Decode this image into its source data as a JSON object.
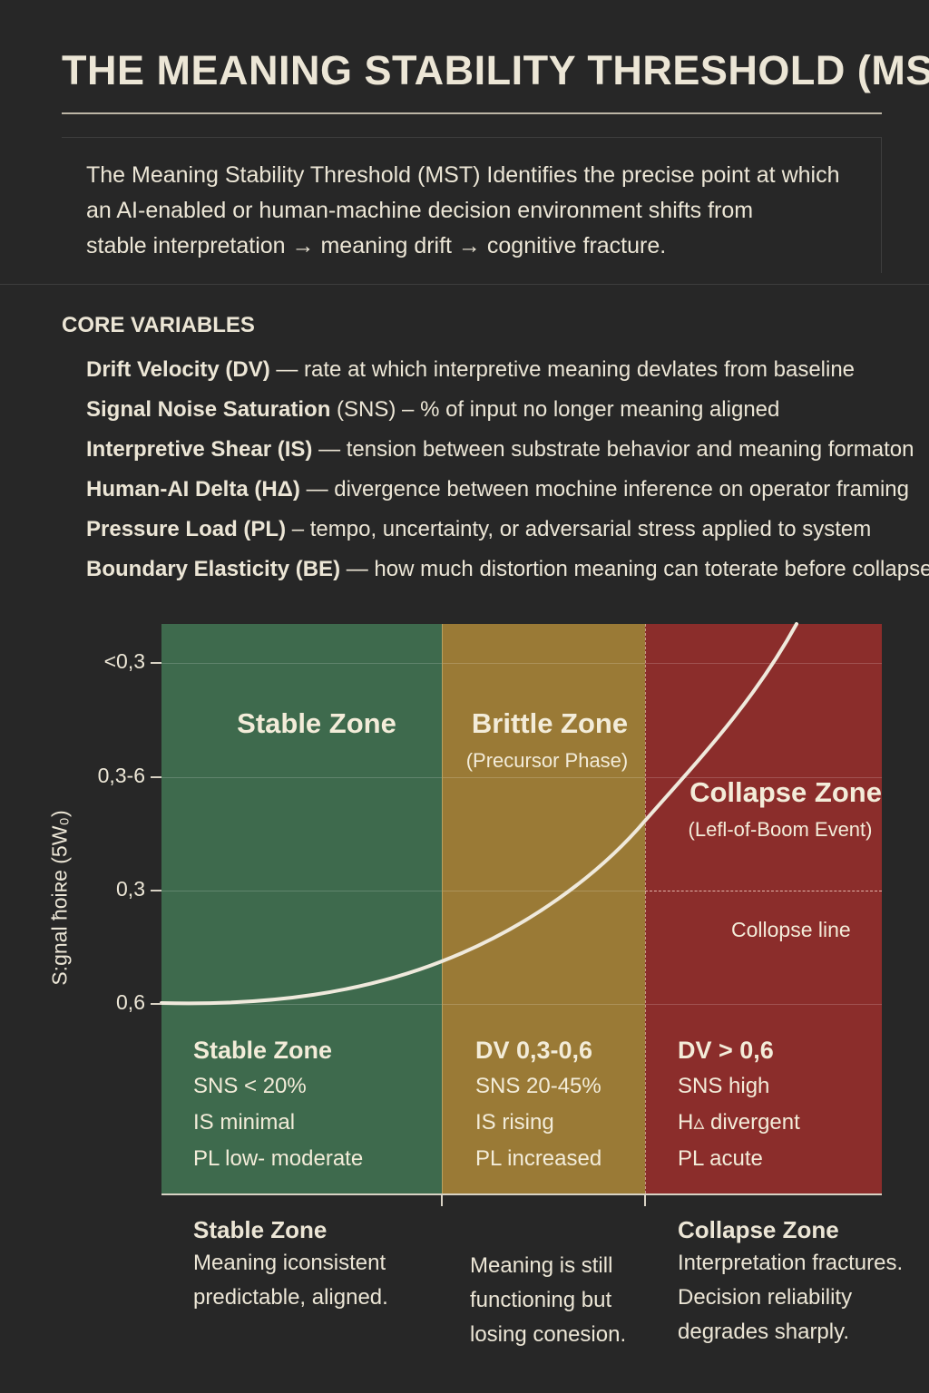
{
  "title": "THE MEANING STABILITY THRESHOLD (MST)",
  "intro": {
    "lines": [
      "The Meaning Stability Threshold (MST) Identifies the precise point at which",
      "an AI-enabled or human-machine decision environment shifts from",
      "stable interpretation → meaning drift → cognitive fracture."
    ]
  },
  "core_variables": {
    "heading": "CORE VARIABLES",
    "items": [
      {
        "term": "Drift Velocity (DV)",
        "desc": " — rate at which interpretive meaning devlates from baseline"
      },
      {
        "term": "Signal Noise Saturation",
        "desc": " (SNS) – % of input no longer meaning aligned"
      },
      {
        "term": "Interpretive Shear (IS)",
        "desc": " — tension between substrate behavior and meaning formaton"
      },
      {
        "term": "Human-AI Delta (HΔ)",
        "desc": " — divergence between mochine inference on operator framing"
      },
      {
        "term": "Pressure Load (PL)",
        "desc": " – tempo, uncertainty, or adversarial stress applied to system"
      },
      {
        "term": "Boundary Elasticity (BE)",
        "desc": " — how much distortion meaning can toterate before collapse"
      }
    ]
  },
  "diagram": {
    "y_axis_label": "S:gnal ħoiʀe (5W₀)",
    "y_ticks": [
      "<0,3",
      "0,3-6",
      "0,3",
      "0,6"
    ],
    "zone_colors": {
      "stable": "#3e6a4d",
      "brittle": "#9a7a36",
      "collapse": "#8b2d2b"
    },
    "curve_color": "#efe9dc",
    "zones": [
      {
        "title": "Stable Zone",
        "subtitle": ""
      },
      {
        "title": "Brittle Zone",
        "subtitle": "(Precursor Phase)"
      },
      {
        "title": "Collapse Zone",
        "subtitle": "(Lefl-of-Boom Event)"
      }
    ],
    "collapse_line_label": "Collopse line",
    "metrics": [
      {
        "head": "Stable Zone",
        "lines": [
          "SNS < 20%",
          "IS minimal",
          "PL low- moderate"
        ]
      },
      {
        "head": "DV 0,3-0,6",
        "lines": [
          "SNS 20-45%",
          "IS rising",
          "PL increased"
        ]
      },
      {
        "head": "DV > 0,6",
        "lines": [
          "SNS high",
          "H▵ divergent",
          "PL acute"
        ]
      }
    ]
  },
  "bottom": [
    {
      "head": "Stable Zone",
      "lines": [
        "Meaning iconsistent",
        "predictable, aligned."
      ]
    },
    {
      "head": "",
      "lines": [
        "Meaning is still",
        "functioning but",
        "losing conesion."
      ]
    },
    {
      "head": "Collapse Zone",
      "lines": [
        "Interpretation fractures.",
        "Decision reliability",
        "degrades sharply."
      ]
    }
  ]
}
